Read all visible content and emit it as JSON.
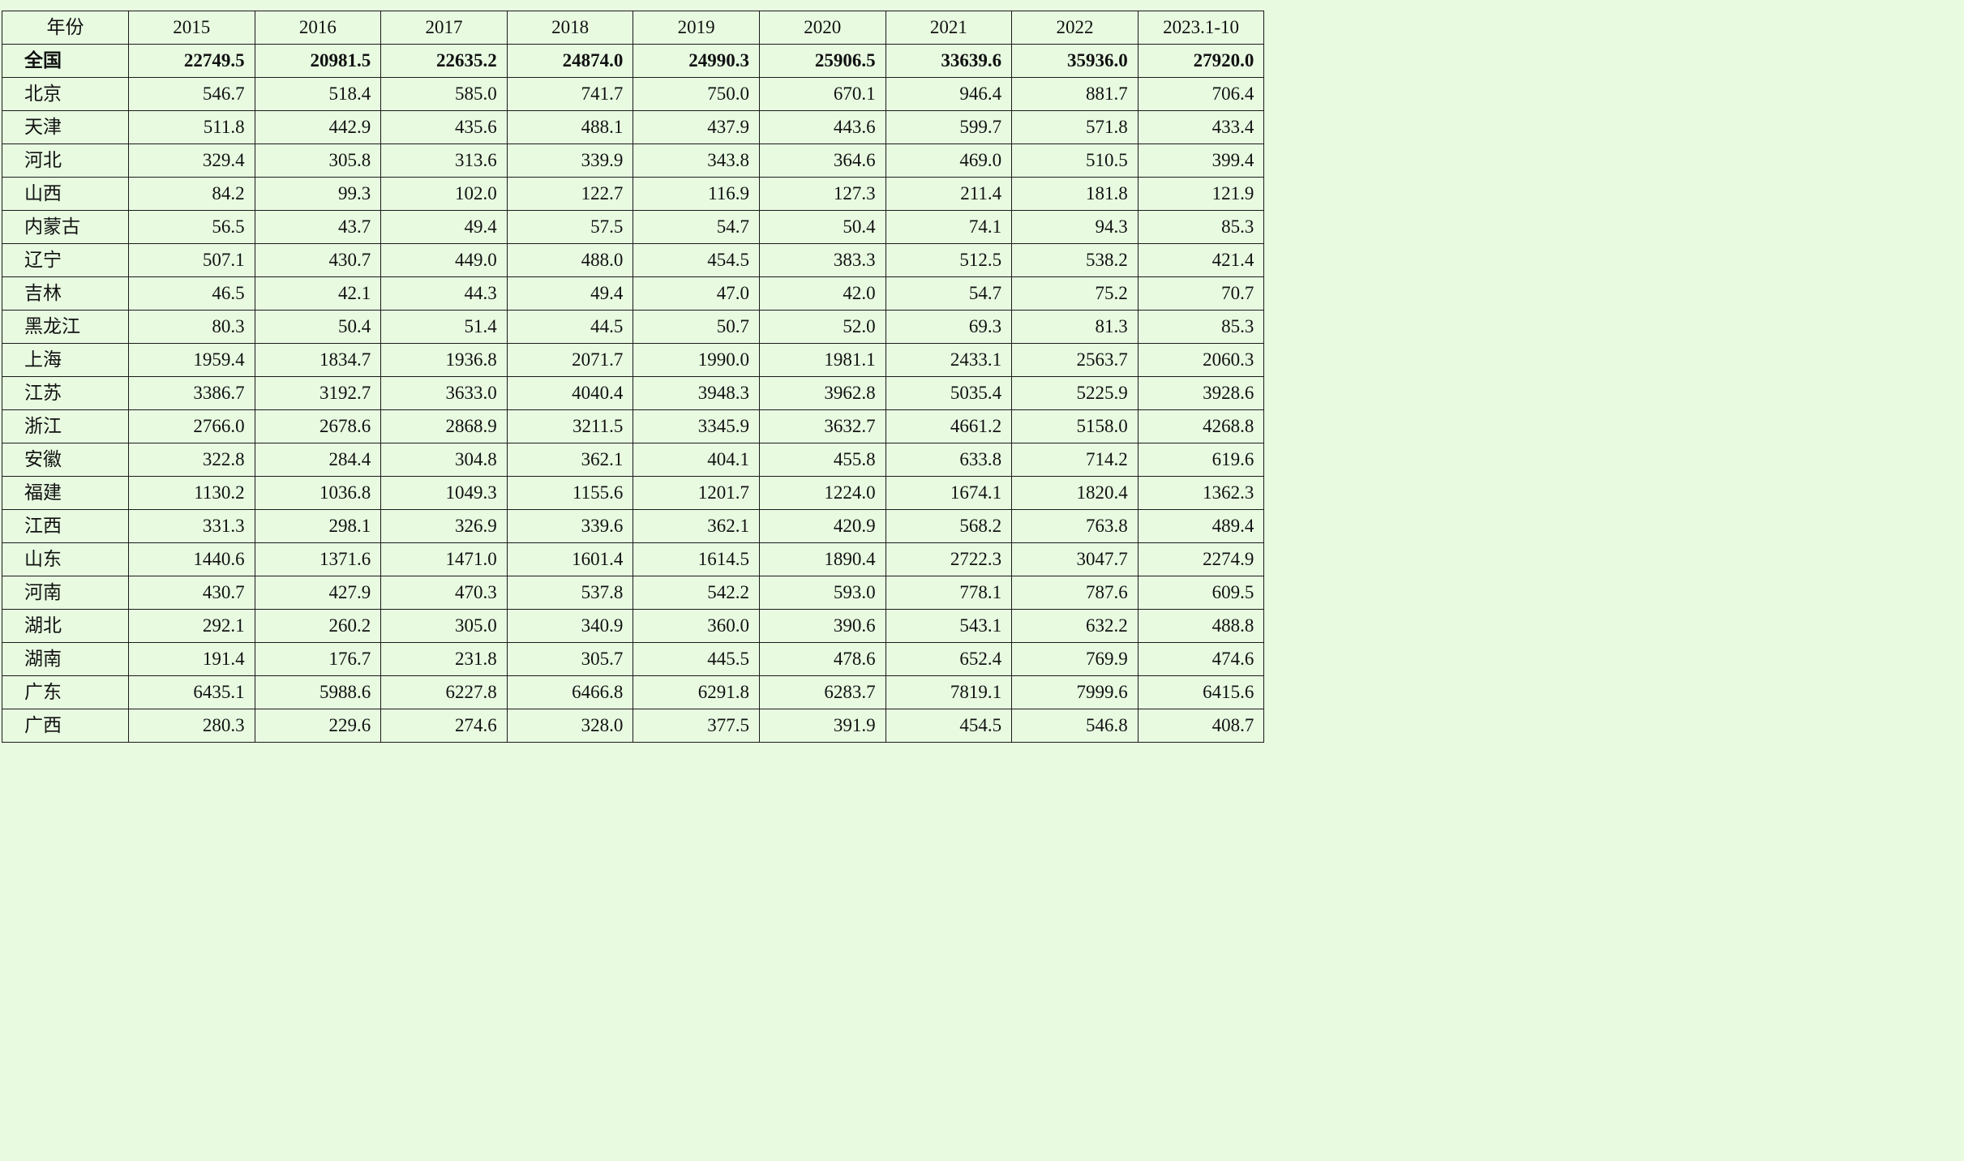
{
  "header": {
    "label": "年份",
    "years": [
      "2015",
      "2016",
      "2017",
      "2018",
      "2019",
      "2020",
      "2021",
      "2022",
      "2023.1-10"
    ]
  },
  "total": {
    "region": "全国",
    "values": [
      "22749.5",
      "20981.5",
      "22635.2",
      "24874.0",
      "24990.3",
      "25906.5",
      "33639.6",
      "35936.0",
      "27920.0"
    ]
  },
  "rows": [
    {
      "region": "北京",
      "values": [
        "546.7",
        "518.4",
        "585.0",
        "741.7",
        "750.0",
        "670.1",
        "946.4",
        "881.7",
        "706.4"
      ]
    },
    {
      "region": "天津",
      "values": [
        "511.8",
        "442.9",
        "435.6",
        "488.1",
        "437.9",
        "443.6",
        "599.7",
        "571.8",
        "433.4"
      ]
    },
    {
      "region": "河北",
      "values": [
        "329.4",
        "305.8",
        "313.6",
        "339.9",
        "343.8",
        "364.6",
        "469.0",
        "510.5",
        "399.4"
      ]
    },
    {
      "region": "山西",
      "values": [
        "84.2",
        "99.3",
        "102.0",
        "122.7",
        "116.9",
        "127.3",
        "211.4",
        "181.8",
        "121.9"
      ]
    },
    {
      "region": "内蒙古",
      "values": [
        "56.5",
        "43.7",
        "49.4",
        "57.5",
        "54.7",
        "50.4",
        "74.1",
        "94.3",
        "85.3"
      ]
    },
    {
      "region": "辽宁",
      "values": [
        "507.1",
        "430.7",
        "449.0",
        "488.0",
        "454.5",
        "383.3",
        "512.5",
        "538.2",
        "421.4"
      ]
    },
    {
      "region": "吉林",
      "values": [
        "46.5",
        "42.1",
        "44.3",
        "49.4",
        "47.0",
        "42.0",
        "54.7",
        "75.2",
        "70.7"
      ]
    },
    {
      "region": "黑龙江",
      "values": [
        "80.3",
        "50.4",
        "51.4",
        "44.5",
        "50.7",
        "52.0",
        "69.3",
        "81.3",
        "85.3"
      ]
    },
    {
      "region": "上海",
      "values": [
        "1959.4",
        "1834.7",
        "1936.8",
        "2071.7",
        "1990.0",
        "1981.1",
        "2433.1",
        "2563.7",
        "2060.3"
      ]
    },
    {
      "region": "江苏",
      "values": [
        "3386.7",
        "3192.7",
        "3633.0",
        "4040.4",
        "3948.3",
        "3962.8",
        "5035.4",
        "5225.9",
        "3928.6"
      ]
    },
    {
      "region": "浙江",
      "values": [
        "2766.0",
        "2678.6",
        "2868.9",
        "3211.5",
        "3345.9",
        "3632.7",
        "4661.2",
        "5158.0",
        "4268.8"
      ]
    },
    {
      "region": "安徽",
      "values": [
        "322.8",
        "284.4",
        "304.8",
        "362.1",
        "404.1",
        "455.8",
        "633.8",
        "714.2",
        "619.6"
      ]
    },
    {
      "region": "福建",
      "values": [
        "1130.2",
        "1036.8",
        "1049.3",
        "1155.6",
        "1201.7",
        "1224.0",
        "1674.1",
        "1820.4",
        "1362.3"
      ]
    },
    {
      "region": "江西",
      "values": [
        "331.3",
        "298.1",
        "326.9",
        "339.6",
        "362.1",
        "420.9",
        "568.2",
        "763.8",
        "489.4"
      ]
    },
    {
      "region": "山东",
      "values": [
        "1440.6",
        "1371.6",
        "1471.0",
        "1601.4",
        "1614.5",
        "1890.4",
        "2722.3",
        "3047.7",
        "2274.9"
      ]
    },
    {
      "region": "河南",
      "values": [
        "430.7",
        "427.9",
        "470.3",
        "537.8",
        "542.2",
        "593.0",
        "778.1",
        "787.6",
        "609.5"
      ]
    },
    {
      "region": "湖北",
      "values": [
        "292.1",
        "260.2",
        "305.0",
        "340.9",
        "360.0",
        "390.6",
        "543.1",
        "632.2",
        "488.8"
      ]
    },
    {
      "region": "湖南",
      "values": [
        "191.4",
        "176.7",
        "231.8",
        "305.7",
        "445.5",
        "478.6",
        "652.4",
        "769.9",
        "474.6"
      ]
    },
    {
      "region": "广东",
      "values": [
        "6435.1",
        "5988.6",
        "6227.8",
        "6466.8",
        "6291.8",
        "6283.7",
        "7819.1",
        "7999.6",
        "6415.6"
      ]
    },
    {
      "region": "广西",
      "values": [
        "280.3",
        "229.6",
        "274.6",
        "328.0",
        "377.5",
        "391.9",
        "454.5",
        "546.8",
        "408.7"
      ]
    }
  ]
}
